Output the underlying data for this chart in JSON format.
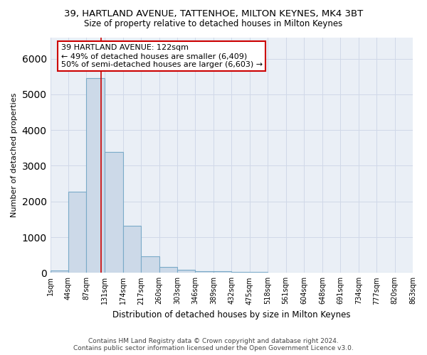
{
  "title1": "39, HARTLAND AVENUE, TATTENHOE, MILTON KEYNES, MK4 3BT",
  "title2": "Size of property relative to detached houses in Milton Keynes",
  "xlabel": "Distribution of detached houses by size in Milton Keynes",
  "ylabel": "Number of detached properties",
  "footer1": "Contains HM Land Registry data © Crown copyright and database right 2024.",
  "footer2": "Contains public sector information licensed under the Open Government Licence v3.0.",
  "bin_edges": [
    1,
    44,
    87,
    131,
    174,
    217,
    260,
    303,
    346,
    389,
    432,
    475,
    518,
    561,
    604,
    648,
    691,
    734,
    777,
    820,
    863
  ],
  "bar_heights": [
    70,
    2270,
    5450,
    3380,
    1310,
    470,
    160,
    85,
    55,
    40,
    30,
    20,
    15,
    10,
    8,
    6,
    4,
    3,
    2,
    1
  ],
  "bar_color": "#ccd9e8",
  "bar_edge_color": "#7aaac8",
  "bar_edge_width": 0.8,
  "tick_labels": [
    "1sqm",
    "44sqm",
    "87sqm",
    "131sqm",
    "174sqm",
    "217sqm",
    "260sqm",
    "303sqm",
    "346sqm",
    "389sqm",
    "432sqm",
    "475sqm",
    "518sqm",
    "561sqm",
    "604sqm",
    "648sqm",
    "691sqm",
    "734sqm",
    "777sqm",
    "820sqm",
    "863sqm"
  ],
  "vline_x": 122,
  "vline_color": "#cc0000",
  "ylim": [
    0,
    6600
  ],
  "xlim": [
    1,
    863
  ],
  "annotation_text": "39 HARTLAND AVENUE: 122sqm\n← 49% of detached houses are smaller (6,409)\n50% of semi-detached houses are larger (6,603) →",
  "annotation_box_color": "#ffffff",
  "annotation_box_edge": "#cc0000",
  "grid_color": "#d0d8e8",
  "bg_color": "#eaeff6",
  "fig_bg": "#ffffff",
  "title1_fontsize": 9.5,
  "title2_fontsize": 8.5,
  "ylabel_fontsize": 8,
  "xlabel_fontsize": 8.5,
  "tick_fontsize": 7,
  "annotation_fontsize": 8,
  "footer_fontsize": 6.5
}
